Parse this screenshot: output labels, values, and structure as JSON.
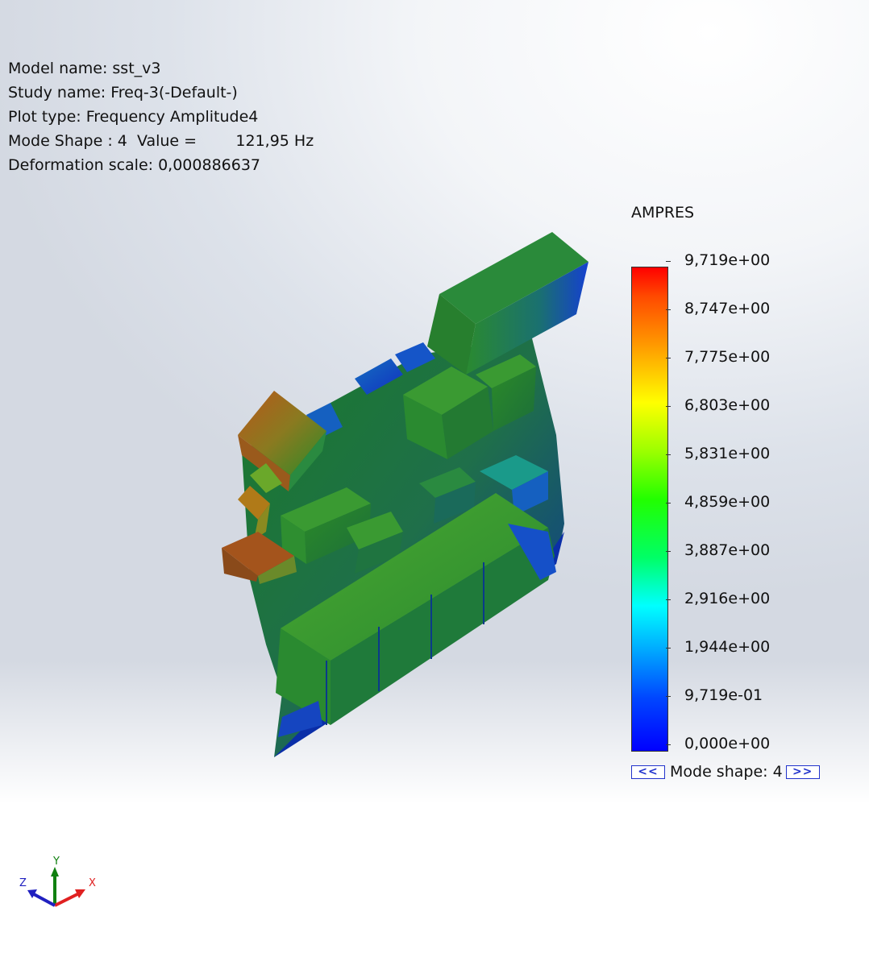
{
  "info": {
    "model_name": "Model name: sst_v3",
    "study_name": "Study name: Freq-3(-Default-)",
    "plot_type": "Plot type: Frequency Amplitude4",
    "mode_shape": "Mode Shape : 4  Value =        121,95 Hz",
    "deformation_scale": "Deformation scale: 0,000886637"
  },
  "legend": {
    "title": "AMPRES",
    "labels": [
      "9,719e+00",
      "8,747e+00",
      "7,775e+00",
      "6,803e+00",
      "5,831e+00",
      "4,859e+00",
      "3,887e+00",
      "2,916e+00",
      "1,944e+00",
      "9,719e-01",
      "0,000e+00"
    ],
    "max_color": "#ff0000",
    "min_color": "#0000ff"
  },
  "mode_nav": {
    "prev_label": "<<",
    "text": "Mode shape: 4",
    "next_label": ">>"
  },
  "triad": {
    "x_label": "X",
    "y_label": "Y",
    "z_label": "Z",
    "x_color": "#e02020",
    "y_color": "#108010",
    "z_color": "#2020c0"
  }
}
